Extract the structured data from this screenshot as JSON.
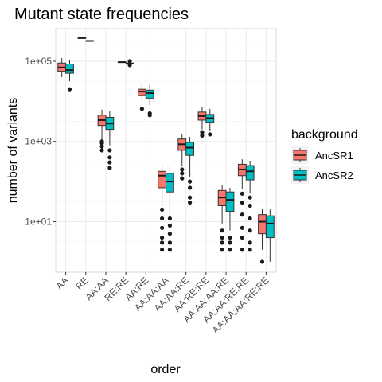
{
  "chart_data": {
    "type": "boxplot",
    "title": "Mutant state frequencies",
    "xlabel": "order",
    "ylabel": "number of variants",
    "y_scale": "log10",
    "ylim": [
      0.55,
      650000
    ],
    "y_ticks": [
      10,
      1000,
      100000
    ],
    "y_tick_labels": [
      "1e+01",
      "1e+03",
      "1e+05"
    ],
    "grid": true,
    "legend": {
      "title": "background",
      "position": "right",
      "entries": [
        {
          "name": "AncSR1",
          "color": "#F8766D"
        },
        {
          "name": "AncSR2",
          "color": "#00BFC4"
        }
      ]
    },
    "categories": [
      "AA",
      "RE",
      "AA:AA",
      "RE:RE",
      "AA:RE",
      "AA:AA:AA",
      "AA:AA:RE",
      "AA:RE:RE",
      "AA:AA:AA:RE",
      "AA:AA:RE:RE",
      "AA:AA:AA:RE:RE"
    ],
    "series": [
      {
        "name": "AncSR1",
        "color": "#F8766D",
        "boxes": [
          {
            "min": 40000,
            "q1": 56000,
            "median": 70000,
            "q3": 90000,
            "max": 120000,
            "outliers": []
          },
          {
            "min": 380000,
            "q1": 380000,
            "median": 380000,
            "q3": 380000,
            "max": 380000,
            "outliers": []
          },
          {
            "min": 1100,
            "q1": 2500,
            "median": 3400,
            "q3": 4500,
            "max": 6200,
            "outliers": [
              600,
              750,
              900,
              1000
            ]
          },
          {
            "min": 95000,
            "q1": 95000,
            "median": 95000,
            "q3": 95000,
            "max": 95000,
            "outliers": []
          },
          {
            "min": 10000,
            "q1": 14000,
            "median": 17500,
            "q3": 20000,
            "max": 27000,
            "outliers": [
              6500
            ]
          },
          {
            "min": 25,
            "q1": 70,
            "median": 140,
            "q3": 180,
            "max": 260,
            "outliers": [
              20,
              12,
              7,
              4,
              3,
              2
            ]
          },
          {
            "min": 250,
            "q1": 600,
            "median": 850,
            "q3": 1150,
            "max": 1500,
            "outliers": [
              200,
              160,
              120
            ]
          },
          {
            "min": 2000,
            "q1": 3400,
            "median": 4300,
            "q3": 5400,
            "max": 7200,
            "outliers": [
              1700,
              1400
            ]
          },
          {
            "min": 9,
            "q1": 25,
            "median": 40,
            "q3": 60,
            "max": 80,
            "outliers": [
              6,
              4,
              3,
              2
            ]
          },
          {
            "min": 65,
            "q1": 140,
            "median": 200,
            "q3": 270,
            "max": 360,
            "outliers": [
              50,
              30,
              15,
              7,
              4,
              2
            ]
          },
          {
            "min": 2,
            "q1": 5,
            "median": 10,
            "q3": 15,
            "max": 21,
            "outliers": [
              1
            ]
          }
        ]
      },
      {
        "name": "AncSR2",
        "color": "#00BFC4",
        "boxes": [
          {
            "min": 32000,
            "q1": 50000,
            "median": 60000,
            "q3": 85000,
            "max": 110000,
            "outliers": [
              20000
            ]
          },
          {
            "min": 320000,
            "q1": 320000,
            "median": 320000,
            "q3": 320000,
            "max": 320000,
            "outliers": []
          },
          {
            "min": 800,
            "q1": 2000,
            "median": 2800,
            "q3": 4000,
            "max": 5600,
            "outliers": [
              600,
              400,
              300,
              220
            ]
          },
          {
            "min": 88000,
            "q1": 88000,
            "median": 88000,
            "q3": 88000,
            "max": 88000,
            "outliers": [
              100000,
              80000
            ]
          },
          {
            "min": 8000,
            "q1": 12000,
            "median": 16000,
            "q3": 19000,
            "max": 26000,
            "outliers": [
              5000,
              4500
            ]
          },
          {
            "min": 15,
            "q1": 55,
            "median": 100,
            "q3": 160,
            "max": 240,
            "outliers": [
              12,
              8,
              5,
              3,
              2
            ]
          },
          {
            "min": 130,
            "q1": 450,
            "median": 700,
            "q3": 950,
            "max": 1300,
            "outliers": [
              100,
              70,
              40,
              30
            ]
          },
          {
            "min": 1800,
            "q1": 3000,
            "median": 3800,
            "q3": 4700,
            "max": 6500,
            "outliers": [
              1500
            ]
          },
          {
            "min": 6,
            "q1": 18,
            "median": 35,
            "q3": 55,
            "max": 70,
            "outliers": [
              4,
              3,
              2
            ]
          },
          {
            "min": 50,
            "q1": 110,
            "median": 180,
            "q3": 250,
            "max": 330,
            "outliers": [
              40,
              25,
              12,
              6,
              3,
              2
            ]
          },
          {
            "min": 1,
            "q1": 4,
            "median": 9,
            "q3": 14,
            "max": 20,
            "outliers": []
          }
        ]
      }
    ]
  }
}
